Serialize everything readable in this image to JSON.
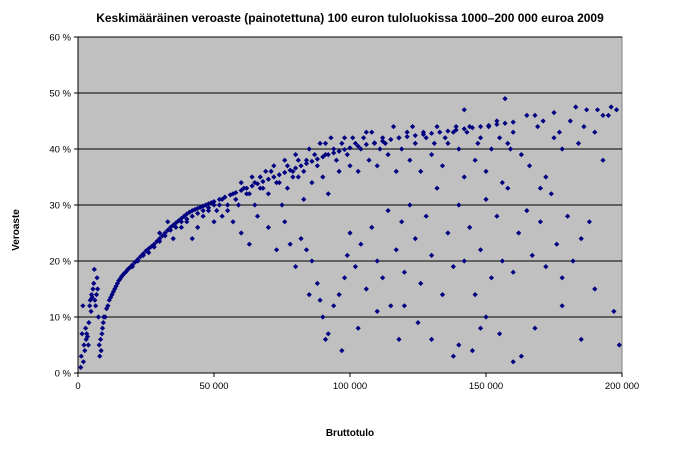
{
  "chart_data": {
    "type": "scatter",
    "title": "Keskimääräinen veroaste (painotettuna) 100 euron tuloluokissa 1000–200 000 euroa 2009",
    "xlabel": "Bruttotulo",
    "ylabel": "Veroaste",
    "xlim": [
      0,
      200000
    ],
    "ylim": [
      0,
      0.6
    ],
    "x_ticks": [
      0,
      50000,
      100000,
      150000,
      200000
    ],
    "x_tick_labels": [
      "0",
      "50 000",
      "100 000",
      "150 000",
      "200 000"
    ],
    "y_ticks": [
      0,
      0.1,
      0.2,
      0.3,
      0.4,
      0.5,
      0.6
    ],
    "y_tick_labels": [
      "0 %",
      "10 %",
      "20 %",
      "30 %",
      "40 %",
      "50 %",
      "60 %"
    ],
    "grid": "horizontal",
    "legend": "none",
    "marker": "diamond",
    "colors": {
      "marker": "#000080",
      "plot_background": "#c0c0c0",
      "gridline": "#000000"
    },
    "points": [
      [
        1000,
        0.01
      ],
      [
        1200,
        0.03
      ],
      [
        1500,
        0.07
      ],
      [
        1800,
        0.12
      ],
      [
        2000,
        0.02
      ],
      [
        2200,
        0.05
      ],
      [
        2500,
        0.04
      ],
      [
        2800,
        0.08
      ],
      [
        3000,
        0.06
      ],
      [
        3200,
        0.07
      ],
      [
        3500,
        0.065
      ],
      [
        3800,
        0.05
      ],
      [
        4000,
        0.09
      ],
      [
        4300,
        0.12
      ],
      [
        4500,
        0.13
      ],
      [
        4800,
        0.11
      ],
      [
        5000,
        0.14
      ],
      [
        5200,
        0.135
      ],
      [
        5500,
        0.15
      ],
      [
        5800,
        0.16
      ],
      [
        6000,
        0.185
      ],
      [
        6200,
        0.13
      ],
      [
        6500,
        0.12
      ],
      [
        6800,
        0.14
      ],
      [
        7000,
        0.17
      ],
      [
        7200,
        0.15
      ],
      [
        7500,
        0.1
      ],
      [
        7800,
        0.05
      ],
      [
        8000,
        0.03
      ],
      [
        8300,
        0.06
      ],
      [
        8500,
        0.04
      ],
      [
        8800,
        0.07
      ],
      [
        9000,
        0.08
      ],
      [
        9300,
        0.09
      ],
      [
        9500,
        0.1
      ],
      [
        10000,
        0.1
      ],
      [
        10500,
        0.115
      ],
      [
        11000,
        0.12
      ],
      [
        11500,
        0.13
      ],
      [
        12000,
        0.135
      ],
      [
        12500,
        0.14
      ],
      [
        13000,
        0.145
      ],
      [
        13500,
        0.15
      ],
      [
        14000,
        0.155
      ],
      [
        14500,
        0.16
      ],
      [
        15000,
        0.165
      ],
      [
        15500,
        0.168
      ],
      [
        16000,
        0.172
      ],
      [
        16500,
        0.175
      ],
      [
        17000,
        0.178
      ],
      [
        17500,
        0.18
      ],
      [
        18000,
        0.183
      ],
      [
        18500,
        0.186
      ],
      [
        19000,
        0.188
      ],
      [
        19500,
        0.19
      ],
      [
        20000,
        0.193
      ],
      [
        21000,
        0.198
      ],
      [
        22000,
        0.203
      ],
      [
        23000,
        0.208
      ],
      [
        24000,
        0.213
      ],
      [
        25000,
        0.218
      ],
      [
        26000,
        0.222
      ],
      [
        27000,
        0.226
      ],
      [
        28000,
        0.23
      ],
      [
        29000,
        0.235
      ],
      [
        30000,
        0.24
      ],
      [
        31000,
        0.245
      ],
      [
        32000,
        0.25
      ],
      [
        33000,
        0.255
      ],
      [
        34000,
        0.26
      ],
      [
        35000,
        0.264
      ],
      [
        36000,
        0.268
      ],
      [
        37000,
        0.272
      ],
      [
        38000,
        0.276
      ],
      [
        39000,
        0.28
      ],
      [
        40000,
        0.284
      ],
      [
        41000,
        0.287
      ],
      [
        42000,
        0.29
      ],
      [
        43000,
        0.292
      ],
      [
        44000,
        0.294
      ],
      [
        45000,
        0.296
      ],
      [
        46000,
        0.298
      ],
      [
        47000,
        0.3
      ],
      [
        48000,
        0.302
      ],
      [
        49000,
        0.304
      ],
      [
        50000,
        0.306
      ],
      [
        52000,
        0.31
      ],
      [
        54000,
        0.314
      ],
      [
        56000,
        0.318
      ],
      [
        58000,
        0.322
      ],
      [
        60000,
        0.326
      ],
      [
        62000,
        0.33
      ],
      [
        64000,
        0.334
      ],
      [
        66000,
        0.338
      ],
      [
        68000,
        0.342
      ],
      [
        70000,
        0.346
      ],
      [
        72000,
        0.35
      ],
      [
        74000,
        0.354
      ],
      [
        76000,
        0.358
      ],
      [
        78000,
        0.362
      ],
      [
        80000,
        0.366
      ],
      [
        82000,
        0.37
      ],
      [
        84000,
        0.374
      ],
      [
        86000,
        0.378
      ],
      [
        88000,
        0.382
      ],
      [
        90000,
        0.386
      ],
      [
        92000,
        0.39
      ],
      [
        94000,
        0.393
      ],
      [
        96000,
        0.396
      ],
      [
        98000,
        0.399
      ],
      [
        100000,
        0.402
      ],
      [
        103000,
        0.405
      ],
      [
        106000,
        0.408
      ],
      [
        109000,
        0.411
      ],
      [
        112000,
        0.414
      ],
      [
        115000,
        0.417
      ],
      [
        118000,
        0.42
      ],
      [
        121000,
        0.422
      ],
      [
        124000,
        0.424
      ],
      [
        127000,
        0.426
      ],
      [
        130000,
        0.428
      ],
      [
        133000,
        0.43
      ],
      [
        136000,
        0.432
      ],
      [
        139000,
        0.434
      ],
      [
        142000,
        0.436
      ],
      [
        145000,
        0.438
      ],
      [
        148000,
        0.44
      ],
      [
        151000,
        0.442
      ],
      [
        154000,
        0.444
      ],
      [
        157000,
        0.446
      ],
      [
        160000,
        0.448
      ],
      [
        30000,
        0.25
      ],
      [
        33000,
        0.27
      ],
      [
        35000,
        0.24
      ],
      [
        38000,
        0.26
      ],
      [
        40000,
        0.27
      ],
      [
        42000,
        0.24
      ],
      [
        44000,
        0.26
      ],
      [
        46000,
        0.28
      ],
      [
        48000,
        0.29
      ],
      [
        50000,
        0.27
      ],
      [
        52000,
        0.3
      ],
      [
        53000,
        0.28
      ],
      [
        55000,
        0.29
      ],
      [
        57000,
        0.27
      ],
      [
        59000,
        0.3
      ],
      [
        60000,
        0.34
      ],
      [
        62000,
        0.32
      ],
      [
        64000,
        0.35
      ],
      [
        65000,
        0.3
      ],
      [
        67000,
        0.33
      ],
      [
        69000,
        0.36
      ],
      [
        70000,
        0.32
      ],
      [
        72000,
        0.37
      ],
      [
        73000,
        0.34
      ],
      [
        75000,
        0.3
      ],
      [
        76000,
        0.38
      ],
      [
        77000,
        0.33
      ],
      [
        79000,
        0.36
      ],
      [
        80000,
        0.39
      ],
      [
        81000,
        0.35
      ],
      [
        83000,
        0.31
      ],
      [
        84000,
        0.38
      ],
      [
        85000,
        0.4
      ],
      [
        86000,
        0.34
      ],
      [
        88000,
        0.37
      ],
      [
        89000,
        0.41
      ],
      [
        90000,
        0.35
      ],
      [
        91000,
        0.39
      ],
      [
        92000,
        0.32
      ],
      [
        93000,
        0.42
      ],
      [
        95000,
        0.38
      ],
      [
        96000,
        0.36
      ],
      [
        97000,
        0.41
      ],
      [
        99000,
        0.39
      ],
      [
        100000,
        0.37
      ],
      [
        101000,
        0.42
      ],
      [
        103000,
        0.36
      ],
      [
        104000,
        0.4
      ],
      [
        106000,
        0.43
      ],
      [
        107000,
        0.38
      ],
      [
        109000,
        0.41
      ],
      [
        110000,
        0.37
      ],
      [
        112000,
        0.42
      ],
      [
        114000,
        0.39
      ],
      [
        116000,
        0.44
      ],
      [
        117000,
        0.36
      ],
      [
        119000,
        0.4
      ],
      [
        121000,
        0.43
      ],
      [
        122000,
        0.38
      ],
      [
        124000,
        0.41
      ],
      [
        126000,
        0.36
      ],
      [
        128000,
        0.42
      ],
      [
        130000,
        0.39
      ],
      [
        132000,
        0.44
      ],
      [
        134000,
        0.37
      ],
      [
        136000,
        0.41
      ],
      [
        138000,
        0.43
      ],
      [
        140000,
        0.4
      ],
      [
        142000,
        0.35
      ],
      [
        144000,
        0.44
      ],
      [
        146000,
        0.38
      ],
      [
        148000,
        0.42
      ],
      [
        150000,
        0.36
      ],
      [
        152000,
        0.4
      ],
      [
        154000,
        0.45
      ],
      [
        156000,
        0.34
      ],
      [
        158000,
        0.41
      ],
      [
        160000,
        0.43
      ],
      [
        163000,
        0.39
      ],
      [
        166000,
        0.37
      ],
      [
        169000,
        0.44
      ],
      [
        172000,
        0.35
      ],
      [
        175000,
        0.42
      ],
      [
        178000,
        0.4
      ],
      [
        181000,
        0.45
      ],
      [
        184000,
        0.41
      ],
      [
        187000,
        0.47
      ],
      [
        190000,
        0.43
      ],
      [
        193000,
        0.46
      ],
      [
        196000,
        0.475
      ],
      [
        198000,
        0.47
      ],
      [
        175000,
        0.465
      ],
      [
        168000,
        0.46
      ],
      [
        183000,
        0.475
      ],
      [
        157000,
        0.49
      ],
      [
        142000,
        0.47
      ],
      [
        60000,
        0.25
      ],
      [
        63000,
        0.23
      ],
      [
        66000,
        0.28
      ],
      [
        70000,
        0.26
      ],
      [
        73000,
        0.22
      ],
      [
        76000,
        0.27
      ],
      [
        78000,
        0.23
      ],
      [
        80000,
        0.19
      ],
      [
        82000,
        0.24
      ],
      [
        84000,
        0.22
      ],
      [
        86000,
        0.2
      ],
      [
        88000,
        0.16
      ],
      [
        89000,
        0.13
      ],
      [
        90000,
        0.1
      ],
      [
        92000,
        0.07
      ],
      [
        94000,
        0.12
      ],
      [
        96000,
        0.14
      ],
      [
        98000,
        0.17
      ],
      [
        99000,
        0.21
      ],
      [
        100000,
        0.25
      ],
      [
        102000,
        0.19
      ],
      [
        104000,
        0.23
      ],
      [
        106000,
        0.15
      ],
      [
        108000,
        0.26
      ],
      [
        110000,
        0.2
      ],
      [
        112000,
        0.17
      ],
      [
        114000,
        0.29
      ],
      [
        115000,
        0.12
      ],
      [
        117000,
        0.22
      ],
      [
        119000,
        0.27
      ],
      [
        120000,
        0.18
      ],
      [
        122000,
        0.3
      ],
      [
        124000,
        0.24
      ],
      [
        126000,
        0.16
      ],
      [
        128000,
        0.28
      ],
      [
        130000,
        0.21
      ],
      [
        132000,
        0.33
      ],
      [
        134000,
        0.14
      ],
      [
        136000,
        0.25
      ],
      [
        138000,
        0.19
      ],
      [
        140000,
        0.3
      ],
      [
        142000,
        0.2
      ],
      [
        144000,
        0.26
      ],
      [
        146000,
        0.14
      ],
      [
        148000,
        0.22
      ],
      [
        150000,
        0.31
      ],
      [
        152000,
        0.17
      ],
      [
        154000,
        0.28
      ],
      [
        156000,
        0.2
      ],
      [
        158000,
        0.33
      ],
      [
        160000,
        0.18
      ],
      [
        162000,
        0.25
      ],
      [
        165000,
        0.29
      ],
      [
        167000,
        0.21
      ],
      [
        170000,
        0.27
      ],
      [
        172000,
        0.19
      ],
      [
        174000,
        0.32
      ],
      [
        176000,
        0.23
      ],
      [
        178000,
        0.17
      ],
      [
        180000,
        0.28
      ],
      [
        182000,
        0.2
      ],
      [
        185000,
        0.24
      ],
      [
        188000,
        0.27
      ],
      [
        190000,
        0.15
      ],
      [
        193000,
        0.38
      ],
      [
        197000,
        0.11
      ],
      [
        199000,
        0.05
      ],
      [
        160000,
        0.02
      ],
      [
        155000,
        0.07
      ],
      [
        145000,
        0.04
      ],
      [
        138000,
        0.03
      ],
      [
        125000,
        0.09
      ],
      [
        118000,
        0.06
      ],
      [
        110000,
        0.11
      ],
      [
        103000,
        0.08
      ],
      [
        97000,
        0.04
      ],
      [
        91000,
        0.06
      ],
      [
        85000,
        0.14
      ],
      [
        168000,
        0.08
      ],
      [
        178000,
        0.12
      ],
      [
        185000,
        0.06
      ],
      [
        170000,
        0.33
      ],
      [
        150000,
        0.1
      ],
      [
        130000,
        0.06
      ],
      [
        140000,
        0.05
      ],
      [
        163000,
        0.03
      ],
      [
        148000,
        0.08
      ],
      [
        120000,
        0.12
      ],
      [
        20000,
        0.19
      ],
      [
        22000,
        0.2
      ],
      [
        24000,
        0.21
      ],
      [
        26000,
        0.215
      ],
      [
        28000,
        0.225
      ],
      [
        30000,
        0.235
      ],
      [
        32000,
        0.245
      ],
      [
        34000,
        0.255
      ],
      [
        36000,
        0.26
      ],
      [
        38000,
        0.27
      ],
      [
        40000,
        0.275
      ],
      [
        42000,
        0.28
      ],
      [
        44000,
        0.285
      ],
      [
        46000,
        0.29
      ],
      [
        48000,
        0.295
      ],
      [
        50000,
        0.3
      ],
      [
        51000,
        0.29
      ],
      [
        53000,
        0.31
      ],
      [
        55000,
        0.3
      ],
      [
        57000,
        0.32
      ],
      [
        58000,
        0.31
      ],
      [
        61000,
        0.33
      ],
      [
        63000,
        0.32
      ],
      [
        65000,
        0.34
      ],
      [
        67000,
        0.35
      ],
      [
        68000,
        0.33
      ],
      [
        71000,
        0.36
      ],
      [
        74000,
        0.34
      ],
      [
        77000,
        0.37
      ],
      [
        79000,
        0.35
      ],
      [
        81000,
        0.38
      ],
      [
        83000,
        0.36
      ],
      [
        87000,
        0.39
      ],
      [
        91000,
        0.41
      ],
      [
        94000,
        0.4
      ],
      [
        98000,
        0.42
      ],
      [
        102000,
        0.41
      ],
      [
        105000,
        0.42
      ],
      [
        108000,
        0.43
      ],
      [
        111000,
        0.4
      ],
      [
        113000,
        0.41
      ],
      [
        118000,
        0.42
      ],
      [
        123000,
        0.44
      ],
      [
        127000,
        0.43
      ],
      [
        131000,
        0.41
      ],
      [
        135000,
        0.42
      ],
      [
        139000,
        0.44
      ],
      [
        143000,
        0.43
      ],
      [
        147000,
        0.41
      ],
      [
        151000,
        0.44
      ],
      [
        155000,
        0.42
      ],
      [
        159000,
        0.4
      ],
      [
        165000,
        0.46
      ],
      [
        171000,
        0.45
      ],
      [
        177000,
        0.43
      ],
      [
        186000,
        0.44
      ],
      [
        191000,
        0.47
      ],
      [
        195000,
        0.46
      ]
    ]
  }
}
